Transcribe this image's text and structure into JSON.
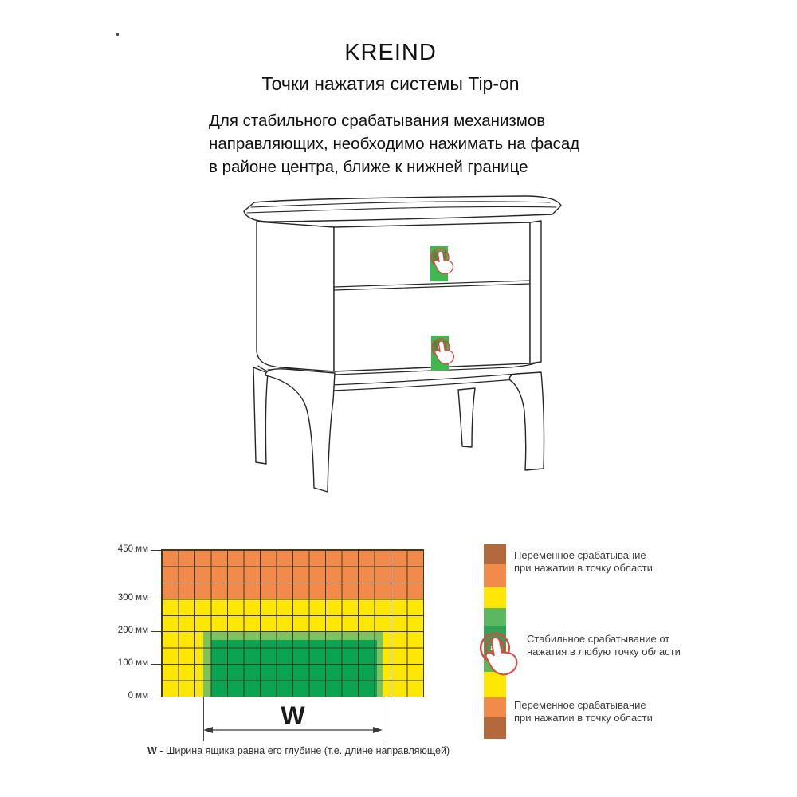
{
  "header": {
    "brand": "KREIND",
    "subtitle": "Точки нажатия системы Tip-on"
  },
  "intro": {
    "line1": "Для стабильного срабатывания механизмов",
    "line2": "направляющих, необходимо нажимать на фасад",
    "line3": "в районе центра, ближе к нижней границе"
  },
  "illustration": {
    "description": "Тумба с двумя ящиками, точки нажатия Tip-on на фасадах",
    "press_point_color": "#3cba4d",
    "press_point_inner_color": "#2e9742",
    "press_icon_color": "#d84a3f"
  },
  "zone_diagram": {
    "axis_labels": [
      "450 мм",
      "300 мм",
      "200 мм",
      "100 мм",
      "0 мм"
    ],
    "grid": {
      "columns": 16,
      "rows": 9,
      "line_color": "#3a3a22"
    },
    "zones": [
      {
        "name": "variable-zone-top",
        "color": "#f18a4b",
        "range_mm": "300-450"
      },
      {
        "name": "intermediate-zone",
        "color": "#ffe705",
        "range_mm": "200-300"
      },
      {
        "name": "stable-zone-frame",
        "color": "#7cc25f",
        "range_mm": "0-200"
      },
      {
        "name": "stable-zone-core",
        "color": "#0aa453",
        "range_mm": "0-200"
      }
    ],
    "width_label": "W",
    "caption_bold": "W",
    "caption_text": " - Ширина ящика равна его глубине (т.е. длине направляющей)"
  },
  "legend": {
    "segments": [
      {
        "c": "#b4693c",
        "h": 25
      },
      {
        "c": "#f18a4b",
        "h": 29
      },
      {
        "c": "#ffe705",
        "h": 26
      },
      {
        "c": "#5cb85f",
        "h": 22
      },
      {
        "c": "#33a156",
        "h": 35
      },
      {
        "c": "#5cb85f",
        "h": 23
      },
      {
        "c": "#ffe705",
        "h": 32
      },
      {
        "c": "#f18a4b",
        "h": 25
      },
      {
        "c": "#b4693c",
        "h": 27
      }
    ],
    "items": [
      {
        "line1": "Переменное срабатывание",
        "line2": "при нажатии в точку области"
      },
      {
        "line1": "Стабильное срабатывание от",
        "line2": "нажатия в любую точку области"
      },
      {
        "line1": "Переменное срабатывание",
        "line2": "при нажатии в точку области"
      }
    ]
  }
}
